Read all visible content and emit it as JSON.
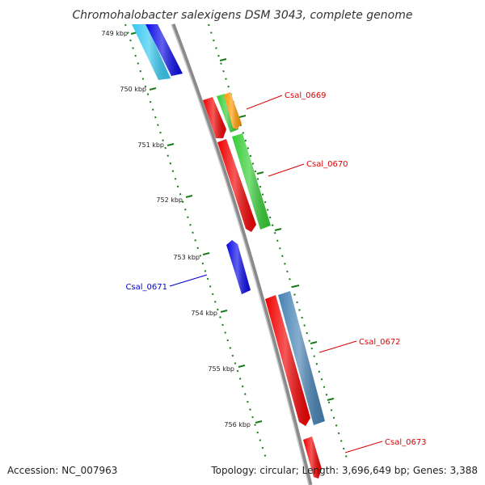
{
  "title": "Chromohalobacter salexigens DSM 3043, complete genome",
  "accession": "Accession: NC_007963",
  "topology": "Topology: circular; Length: 3,696,649 bp; Genes: 3,388",
  "colors": {
    "backbone": "#8c8c8c",
    "ticks": "#1a7a1a",
    "forward_label": "#e00000",
    "reverse_label": "#0000cc",
    "title": "#333333"
  },
  "ticks": [
    {
      "label": "749 kbp"
    },
    {
      "label": "750 kbp"
    },
    {
      "label": "751 kbp"
    },
    {
      "label": "752 kbp"
    },
    {
      "label": "753 kbp"
    },
    {
      "label": "754 kbp"
    },
    {
      "label": "755 kbp"
    },
    {
      "label": "756 kbp"
    }
  ],
  "gene_labels": [
    {
      "name": "Csal_0669",
      "strand": "forward"
    },
    {
      "name": "Csal_0670",
      "strand": "forward"
    },
    {
      "name": "Csal_0671",
      "strand": "reverse"
    },
    {
      "name": "Csal_0672",
      "strand": "forward"
    },
    {
      "name": "Csal_0673",
      "strand": "forward"
    }
  ],
  "features": [
    {
      "name": "cyan-feature",
      "color": "#33c8f0"
    },
    {
      "name": "blue-feature-top",
      "color": "#0a0ae6"
    },
    {
      "name": "red-feature-0669",
      "color": "#f00000"
    },
    {
      "name": "green-feature-0669",
      "color": "#33cc33"
    },
    {
      "name": "orange-feature-0669",
      "color": "#ff9900"
    },
    {
      "name": "red-feature-0670",
      "color": "#f00000"
    },
    {
      "name": "green-feature-0670",
      "color": "#33cc33"
    },
    {
      "name": "blue-feature-0671",
      "color": "#0a0ae6"
    },
    {
      "name": "red-feature-0672",
      "color": "#f00000"
    },
    {
      "name": "steelblue-feature-0672",
      "color": "#4682b4"
    },
    {
      "name": "red-feature-0673",
      "color": "#f00000"
    }
  ]
}
